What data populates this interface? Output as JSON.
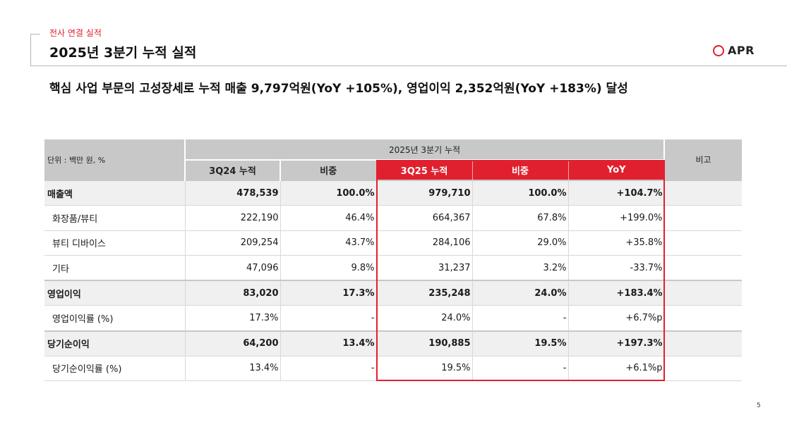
{
  "header": {
    "section_label": "전사 연결 실적",
    "title": "2025년 3분기 누적 실적",
    "logo_text": "APR"
  },
  "headline": "핵심 사업 부문의 고성장세로 누적 매출 9,797억원(YoY +105%), 영업이익 2,352억원(YoY +183%) 달성",
  "table": {
    "unit_label": "단위 : 백만 원, %",
    "period_label": "2025년 3분기 누적",
    "note_label": "비고",
    "columns": [
      "3Q24 누적",
      "비중",
      "3Q25 누적",
      "비중",
      "YoY"
    ],
    "rows": [
      {
        "label": "매출액",
        "cells": [
          "478,539",
          "100.0%",
          "979,710",
          "100.0%",
          "+104.7%"
        ],
        "note": ""
      },
      {
        "label": "화장품/뷰티",
        "cells": [
          "222,190",
          "46.4%",
          "664,367",
          "67.8%",
          "+199.0%"
        ],
        "note": ""
      },
      {
        "label": "뷰티 디바이스",
        "cells": [
          "209,254",
          "43.7%",
          "284,106",
          "29.0%",
          "+35.8%"
        ],
        "note": ""
      },
      {
        "label": "기타",
        "cells": [
          "47,096",
          "9.8%",
          "31,237",
          "3.2%",
          "-33.7%"
        ],
        "note": ""
      },
      {
        "label": "영업이익",
        "cells": [
          "83,020",
          "17.3%",
          "235,248",
          "24.0%",
          "+183.4%"
        ],
        "note": ""
      },
      {
        "label": "영업이익률 (%)",
        "cells": [
          "17.3%",
          "-",
          "24.0%",
          "-",
          "+6.7%p"
        ],
        "note": ""
      },
      {
        "label": "당기순이익",
        "cells": [
          "64,200",
          "13.4%",
          "190,885",
          "19.5%",
          "+197.3%"
        ],
        "note": ""
      },
      {
        "label": "당기순이익률 (%)",
        "cells": [
          "13.4%",
          "-",
          "19.5%",
          "-",
          "+6.1%p"
        ],
        "note": ""
      }
    ]
  },
  "page_number": "5",
  "colors": {
    "accent": "#e0202f",
    "header_gray": "#c8c8c8",
    "row_highlight": "#f0f0f0"
  }
}
